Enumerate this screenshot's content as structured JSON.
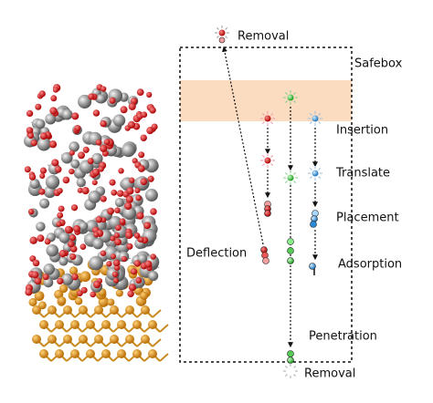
{
  "labels": {
    "removal_top": "Removal",
    "safebox": "Safebox",
    "insertion": "Insertion",
    "translate": "Translate",
    "placement": "Placement",
    "deflection": "Deflection",
    "adsorption": "Adsorption",
    "penetration": "Penetration",
    "removal_bottom": "Removal"
  }
}
